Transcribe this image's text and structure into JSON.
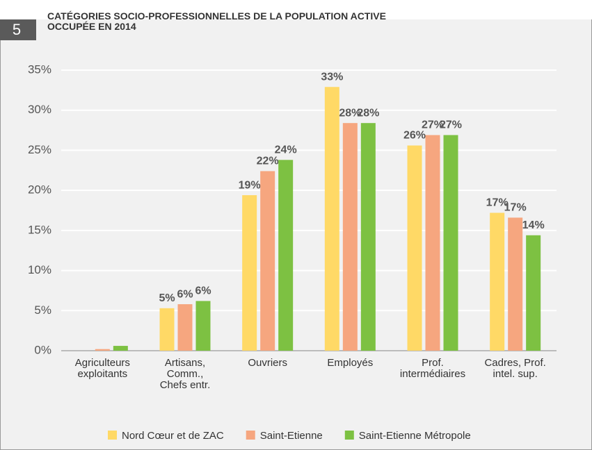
{
  "badge": "5",
  "chart_data": {
    "type": "bar",
    "title": "CATÉGORIES SOCIO-PROFESSIONNELLES DE LA POPULATION ACTIVE\nOCCUPÉE EN 2014",
    "categories": [
      "Agriculteurs\nexploitants",
      "Artisans,\nComm.,\nChefs entr.",
      "Ouvriers",
      "Employés",
      "Prof.\nintermédiaires",
      "Cadres, Prof.\nintel. sup."
    ],
    "series": [
      {
        "name": "Nord Cœur et de ZAC",
        "color": "#ffd966",
        "values": [
          0,
          5.3,
          19.4,
          32.9,
          25.6,
          17.2
        ],
        "value_labels": [
          null,
          "5%",
          "19%",
          "33%",
          "26%",
          "17%"
        ]
      },
      {
        "name": "Saint-Etienne",
        "color": "#f6a67f",
        "values": [
          0.2,
          5.8,
          22.4,
          28.4,
          26.9,
          16.6
        ],
        "value_labels": [
          null,
          "6%",
          "22%",
          "28%",
          "27%",
          "17%"
        ]
      },
      {
        "name": "Saint-Etienne Métropole",
        "color": "#7dc142",
        "values": [
          0.6,
          6.2,
          23.8,
          28.4,
          26.9,
          14.4
        ],
        "value_labels": [
          null,
          "6%",
          "24%",
          "28%",
          "27%",
          "14%"
        ]
      }
    ],
    "ylim": [
      0,
      35
    ],
    "yticks": [
      {
        "value": 0,
        "label": "0%"
      },
      {
        "value": 5,
        "label": "5%"
      },
      {
        "value": 10,
        "label": "10%"
      },
      {
        "value": 15,
        "label": "15%"
      },
      {
        "value": 20,
        "label": "20%"
      },
      {
        "value": 25,
        "label": "25%"
      },
      {
        "value": 30,
        "label": "30%"
      },
      {
        "value": 35,
        "label": "35%"
      }
    ],
    "grid": true,
    "legend": "bottom"
  }
}
